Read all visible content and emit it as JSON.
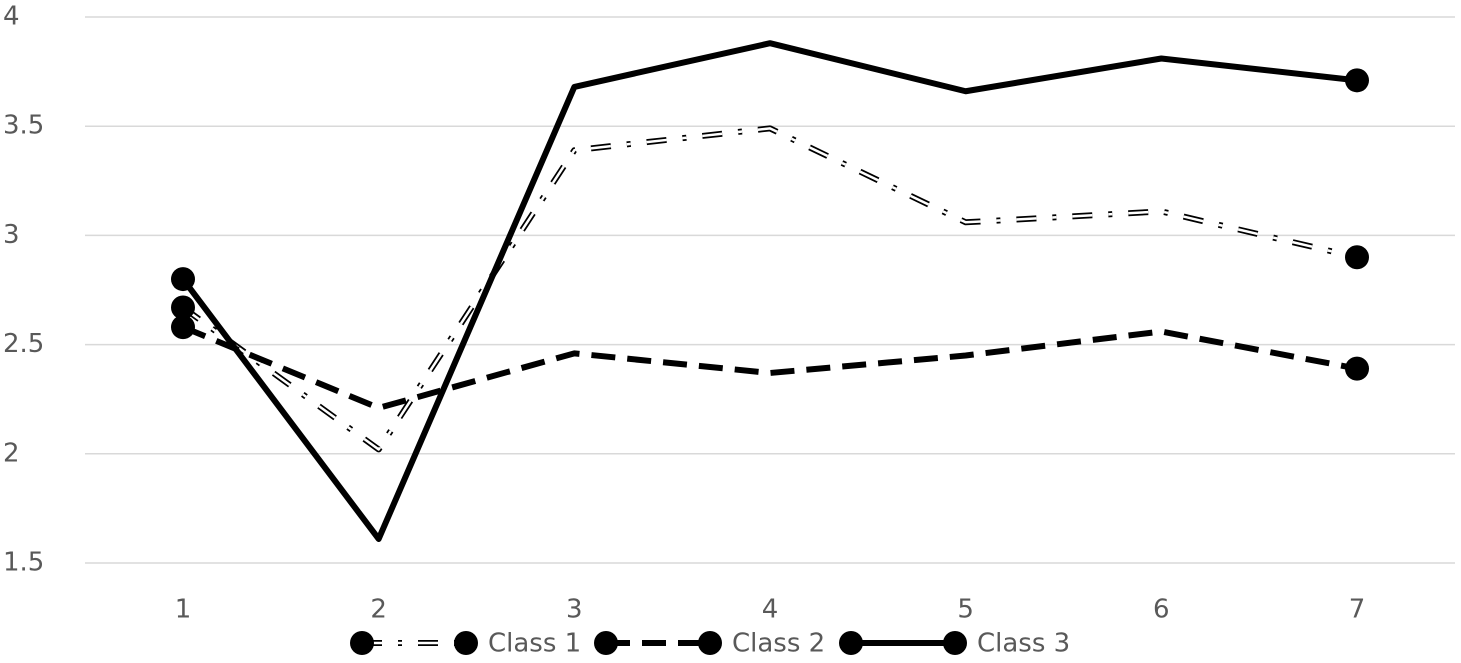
{
  "chart_data": {
    "type": "line",
    "categories": [
      "1",
      "2",
      "3",
      "4",
      "5",
      "6",
      "7"
    ],
    "series": [
      {
        "name": "Class 1",
        "color": "#000000",
        "line_style": "dashdot",
        "double": true,
        "values": [
          2.67,
          2.02,
          3.39,
          3.49,
          3.06,
          3.11,
          2.9
        ]
      },
      {
        "name": "Class 2",
        "color": "#000000",
        "line_style": "dash",
        "double": false,
        "values": [
          2.58,
          2.21,
          2.46,
          2.37,
          2.45,
          2.56,
          2.39
        ]
      },
      {
        "name": "Class 3",
        "color": "#000000",
        "line_style": "solid",
        "double": false,
        "values": [
          2.8,
          1.61,
          3.68,
          3.88,
          3.66,
          3.81,
          3.71
        ]
      }
    ],
    "ylim": [
      1.5,
      4
    ],
    "yticks": [
      1.5,
      2,
      2.5,
      3,
      3.5,
      4
    ],
    "grid": true,
    "legend": "bottom"
  }
}
